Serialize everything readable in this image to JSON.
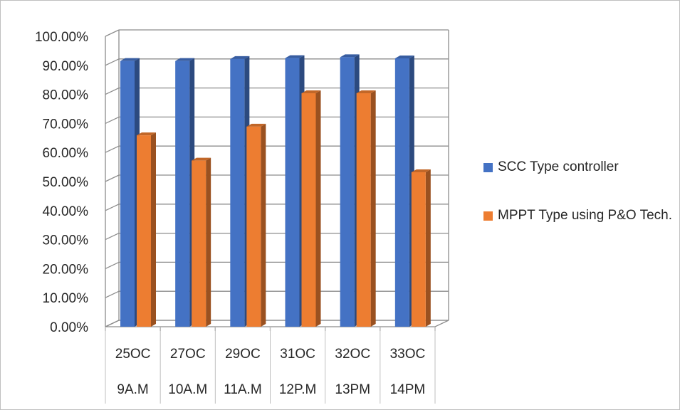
{
  "chart_data": {
    "type": "bar",
    "style": "3d-clustered-column",
    "categories": [
      [
        "25OC",
        "9A.M"
      ],
      [
        "27OC",
        "10A.M"
      ],
      [
        "29OC",
        "11A.M"
      ],
      [
        "31OC",
        "12P.M"
      ],
      [
        "32OC",
        "13PM"
      ],
      [
        "33OC",
        "14PM"
      ]
    ],
    "series": [
      {
        "name": "SCC Type controller",
        "color": "#4472C4",
        "values": [
          0.915,
          0.915,
          0.922,
          0.925,
          0.928,
          0.924
        ]
      },
      {
        "name": "MPPT Type using P&O Tech.",
        "color": "#ED7D31",
        "values": [
          0.659,
          0.572,
          0.689,
          0.804,
          0.804,
          0.532
        ]
      }
    ],
    "y_ticks": [
      "0.00%",
      "10.00%",
      "20.00%",
      "30.00%",
      "40.00%",
      "50.00%",
      "60.00%",
      "70.00%",
      "80.00%",
      "90.00%",
      "100.00%"
    ],
    "ylim": [
      0,
      1
    ],
    "grid": true,
    "legend_position": "right"
  }
}
